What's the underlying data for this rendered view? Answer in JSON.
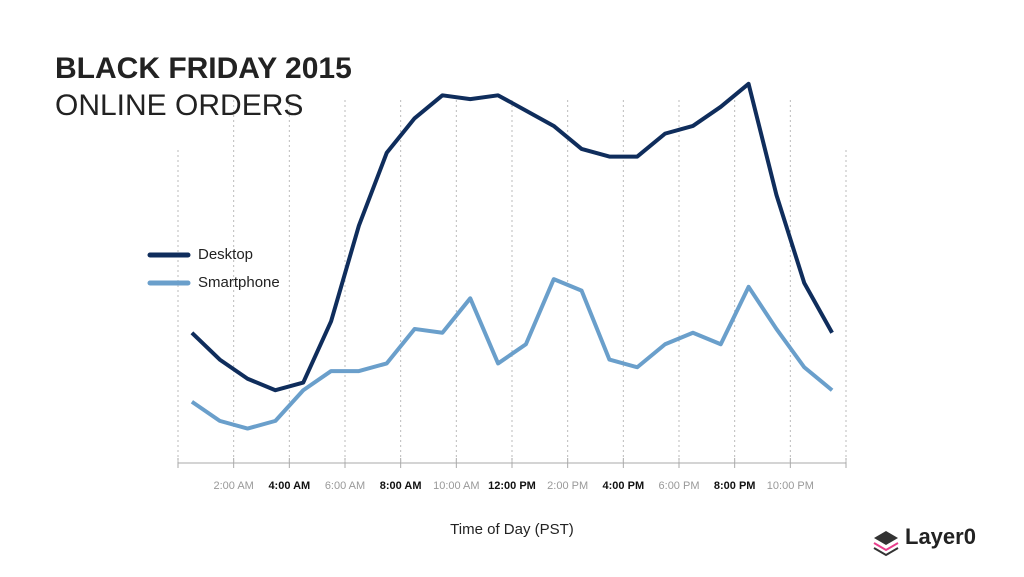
{
  "chart_data": {
    "type": "line",
    "title": "BLACK FRIDAY 2015",
    "subtitle": "ONLINE ORDERS",
    "x_label": "Time of Day (PST)",
    "x": [
      0.5,
      1.5,
      2.5,
      3.5,
      4.5,
      5.5,
      6.5,
      7.5,
      8.5,
      9.5,
      10.5,
      11.5,
      12.5,
      13.5,
      14.5,
      15.5,
      16.5,
      17.5,
      18.5,
      19.5,
      20.5,
      21.5,
      22.5,
      23.5
    ],
    "series": [
      {
        "name": "Desktop",
        "color": "#0f2d5c",
        "values": [
          34,
          27,
          22,
          19,
          21,
          37,
          62,
          81,
          90,
          96,
          95,
          96,
          92,
          88,
          82,
          80,
          80,
          86,
          88,
          93,
          99,
          70,
          47,
          34
        ]
      },
      {
        "name": "Smartphone",
        "color": "#6a9fcb",
        "values": [
          16,
          11,
          9,
          11,
          19,
          24,
          24,
          26,
          35,
          34,
          43,
          26,
          31,
          48,
          45,
          27,
          25,
          31,
          34,
          31,
          46,
          35,
          25,
          19
        ]
      }
    ],
    "xlim": [
      0,
      24
    ],
    "ylim": [
      0,
      100
    ],
    "xticks": [
      {
        "value": 2,
        "label": "2:00 AM"
      },
      {
        "value": 4,
        "label": "4:00 AM"
      },
      {
        "value": 6,
        "label": "6:00 AM"
      },
      {
        "value": 8,
        "label": "8:00 AM"
      },
      {
        "value": 10,
        "label": "10:00 AM"
      },
      {
        "value": 12,
        "label": "12:00 PM"
      },
      {
        "value": 14,
        "label": "2:00 PM"
      },
      {
        "value": 16,
        "label": "4:00 PM"
      },
      {
        "value": 18,
        "label": "6:00 PM"
      },
      {
        "value": 20,
        "label": "8:00 PM"
      },
      {
        "value": 22,
        "label": "10:00 PM"
      }
    ],
    "grid": true,
    "logo": "Layer0"
  }
}
